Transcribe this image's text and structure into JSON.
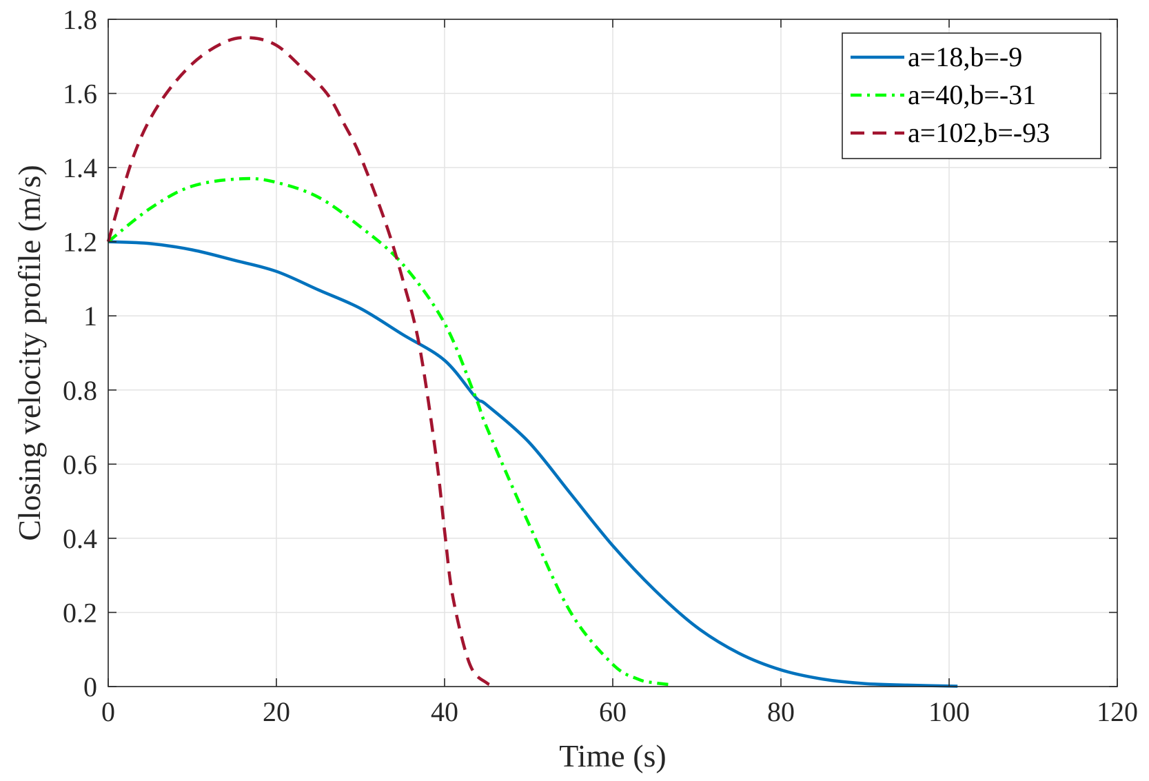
{
  "chart_data": {
    "type": "line",
    "title": "",
    "xlabel": "Time (s)",
    "ylabel": "Closing velocity profile (m/s)",
    "xlim": [
      0,
      120
    ],
    "ylim": [
      0,
      1.8
    ],
    "xticks": [
      "0",
      "20",
      "40",
      "60",
      "80",
      "100",
      "120"
    ],
    "yticks": [
      "0",
      "0.2",
      "0.4",
      "0.6",
      "0.8",
      "1",
      "1.2",
      "1.4",
      "1.6",
      "1.8"
    ],
    "grid": true,
    "legend_position": "top-right",
    "series": [
      {
        "name": "a=18,b=-9",
        "color": "#0072bd",
        "style": "solid",
        "x": [
          0,
          5,
          10,
          15,
          20,
          25,
          30,
          35,
          40,
          43.7,
          45,
          50,
          55,
          60,
          65,
          70,
          75,
          80,
          85,
          90,
          95,
          101
        ],
        "y": [
          1.2,
          1.195,
          1.178,
          1.15,
          1.12,
          1.07,
          1.02,
          0.95,
          0.88,
          0.78,
          0.76,
          0.66,
          0.52,
          0.38,
          0.26,
          0.16,
          0.09,
          0.045,
          0.02,
          0.008,
          0.004,
          0.001
        ]
      },
      {
        "name": "a=40,b=-31",
        "color": "#00ff00",
        "style": "dashdot",
        "x": [
          0,
          5,
          10,
          16,
          20,
          25,
          30,
          35,
          40,
          43.7,
          45,
          50,
          55,
          60,
          63,
          65,
          67
        ],
        "y": [
          1.2,
          1.29,
          1.35,
          1.37,
          1.36,
          1.32,
          1.24,
          1.14,
          0.98,
          0.78,
          0.7,
          0.44,
          0.2,
          0.06,
          0.02,
          0.01,
          0.005
        ]
      },
      {
        "name": "a=102,b=-93",
        "color": "#a2142f",
        "style": "dashed",
        "x": [
          0,
          3,
          6,
          10,
          14,
          17,
          20,
          23,
          26,
          28,
          30,
          33,
          35,
          37,
          39,
          40,
          41,
          43,
          45,
          46
        ],
        "y": [
          1.2,
          1.43,
          1.57,
          1.68,
          1.74,
          1.75,
          1.73,
          1.67,
          1.6,
          1.52,
          1.43,
          1.25,
          1.1,
          0.92,
          0.62,
          0.42,
          0.24,
          0.06,
          0.01,
          0.005
        ]
      }
    ]
  }
}
